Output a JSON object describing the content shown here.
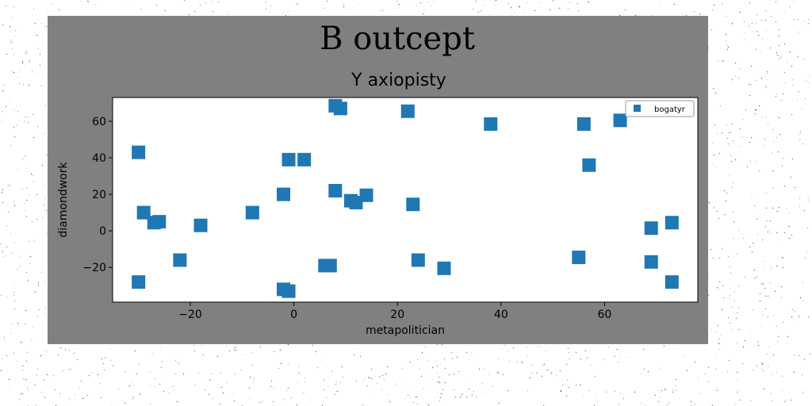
{
  "chart_data": {
    "type": "scatter",
    "title": "B outcept",
    "subtitle": "Y axiopisty",
    "xlabel": "metapolitician",
    "ylabel": "diamondwork",
    "xlim": [
      -35,
      78
    ],
    "ylim": [
      -39,
      73
    ],
    "xticks": [
      -20,
      0,
      20,
      40,
      60
    ],
    "yticks": [
      -20,
      0,
      20,
      40,
      60
    ],
    "grid": false,
    "legend_position": "top-right",
    "marker": "square",
    "colors": {
      "series": "#1f77b4",
      "figure_bg": "#808080",
      "plot_bg": "#ffffff"
    },
    "series": [
      {
        "name": "bogatyr",
        "points": [
          {
            "x": -30,
            "y": 43
          },
          {
            "x": -29,
            "y": 10
          },
          {
            "x": -27,
            "y": 4.5
          },
          {
            "x": -26,
            "y": 5
          },
          {
            "x": -30,
            "y": -28
          },
          {
            "x": -22,
            "y": -16
          },
          {
            "x": -18,
            "y": 3
          },
          {
            "x": -8,
            "y": 10
          },
          {
            "x": -2,
            "y": 20
          },
          {
            "x": -1,
            "y": 39
          },
          {
            "x": 2,
            "y": 39
          },
          {
            "x": -2,
            "y": -32
          },
          {
            "x": -1,
            "y": -33
          },
          {
            "x": 6,
            "y": -19
          },
          {
            "x": 7,
            "y": -19
          },
          {
            "x": 8,
            "y": 68.5
          },
          {
            "x": 9,
            "y": 67
          },
          {
            "x": 8,
            "y": 22
          },
          {
            "x": 11,
            "y": 16.5
          },
          {
            "x": 12,
            "y": 15.5
          },
          {
            "x": 14,
            "y": 19.5
          },
          {
            "x": 22,
            "y": 65.5
          },
          {
            "x": 23,
            "y": 14.5
          },
          {
            "x": 24,
            "y": -16
          },
          {
            "x": 29,
            "y": -20.5
          },
          {
            "x": 38,
            "y": 58.5
          },
          {
            "x": 55,
            "y": -14.5
          },
          {
            "x": 56,
            "y": 58.5
          },
          {
            "x": 57,
            "y": 36
          },
          {
            "x": 63,
            "y": 60.5
          },
          {
            "x": 69,
            "y": 1.5
          },
          {
            "x": 69,
            "y": -17
          },
          {
            "x": 73,
            "y": 4.5
          },
          {
            "x": 73,
            "y": -28
          }
        ]
      }
    ]
  }
}
